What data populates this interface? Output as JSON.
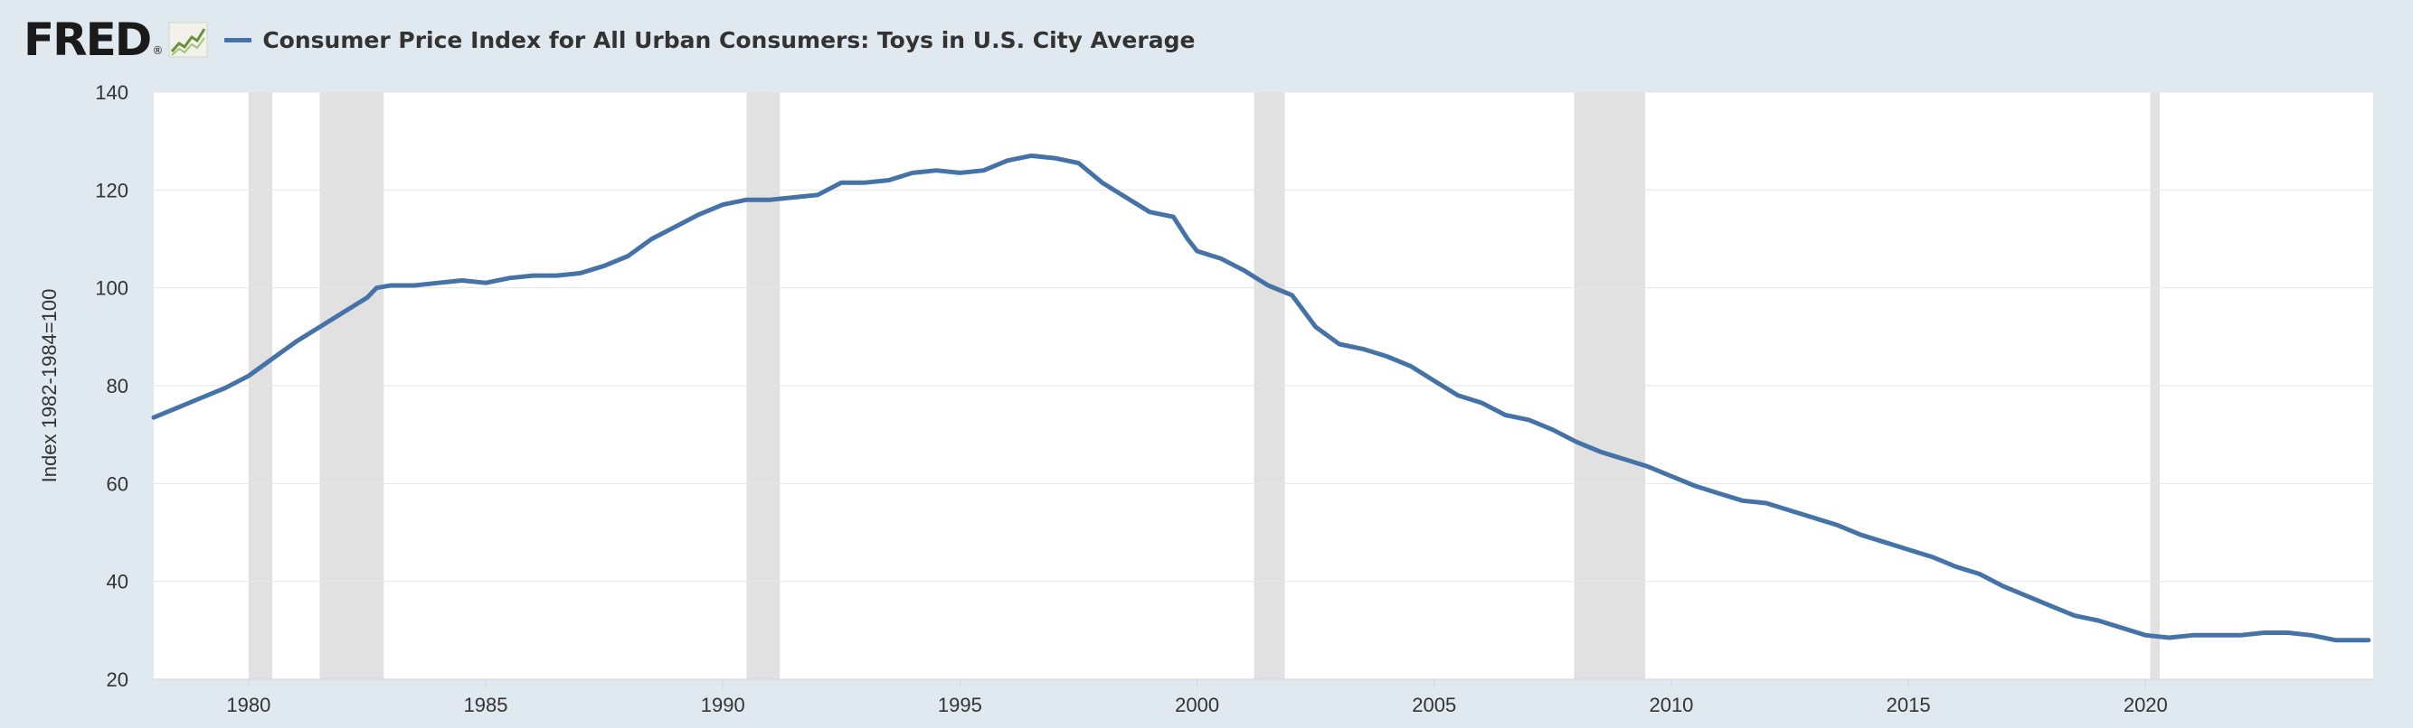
{
  "header": {
    "logo_text": "FRED",
    "logo_mark": "®",
    "logo_icon": "chart-line-icon",
    "series_title": "Consumer Price Index for All Urban Consumers: Toys in U.S. City Average"
  },
  "colors": {
    "series": "#4572a7",
    "background": "#e1e9f0",
    "plot": "#ffffff",
    "recession": "#e1e1e1",
    "grid": "#e6e6e6",
    "text": "#333333"
  },
  "chart_data": {
    "type": "line",
    "title": "Consumer Price Index for All Urban Consumers: Toys in U.S. City Average",
    "ylabel": "Index 1982-1984=100",
    "xlabel": "",
    "xlim": [
      1978,
      2024.8
    ],
    "ylim": [
      20,
      140
    ],
    "x_ticks": [
      "1980",
      "1985",
      "1990",
      "1995",
      "2000",
      "2005",
      "2010",
      "2015",
      "2020"
    ],
    "y_ticks": [
      "20",
      "40",
      "60",
      "80",
      "100",
      "120",
      "140"
    ],
    "grid": "horizontal",
    "recessions": [
      [
        1980.0,
        1980.5
      ],
      [
        1981.5,
        1982.85
      ],
      [
        1990.5,
        1991.2
      ],
      [
        2001.2,
        2001.85
      ],
      [
        2007.95,
        2009.45
      ],
      [
        2020.1,
        2020.3
      ]
    ],
    "series": [
      {
        "name": "Consumer Price Index for All Urban Consumers: Toys in U.S. City Average",
        "x": [
          1978.0,
          1978.5,
          1979.0,
          1979.5,
          1980.0,
          1980.5,
          1981.0,
          1981.5,
          1982.0,
          1982.5,
          1982.7,
          1983.0,
          1983.5,
          1984.0,
          1984.5,
          1985.0,
          1985.5,
          1986.0,
          1986.5,
          1987.0,
          1987.5,
          1988.0,
          1988.5,
          1989.0,
          1989.5,
          1990.0,
          1990.5,
          1991.0,
          1991.5,
          1992.0,
          1992.5,
          1993.0,
          1993.5,
          1994.0,
          1994.5,
          1995.0,
          1995.5,
          1996.0,
          1996.5,
          1997.0,
          1997.5,
          1998.0,
          1998.5,
          1999.0,
          1999.5,
          1999.8,
          2000.0,
          2000.5,
          2001.0,
          2001.5,
          2002.0,
          2002.5,
          2003.0,
          2003.5,
          2004.0,
          2004.5,
          2005.0,
          2005.5,
          2006.0,
          2006.5,
          2007.0,
          2007.5,
          2008.0,
          2008.5,
          2009.0,
          2009.5,
          2010.0,
          2010.5,
          2011.0,
          2011.5,
          2012.0,
          2012.5,
          2013.0,
          2013.5,
          2014.0,
          2014.5,
          2015.0,
          2015.5,
          2016.0,
          2016.5,
          2017.0,
          2017.5,
          2018.0,
          2018.5,
          2019.0,
          2019.5,
          2020.0,
          2020.5,
          2021.0,
          2021.5,
          2022.0,
          2022.5,
          2023.0,
          2023.5,
          2024.0,
          2024.7
        ],
        "y": [
          73.5,
          75.5,
          77.5,
          79.5,
          82,
          85.5,
          89,
          92,
          95,
          98,
          100,
          100.5,
          100.5,
          101,
          101.5,
          101,
          102,
          102.5,
          102.5,
          103,
          104.5,
          106.5,
          110,
          112.5,
          115,
          117,
          118,
          118,
          118.5,
          119,
          121.5,
          121.5,
          122,
          123.5,
          124,
          123.5,
          124,
          126,
          127,
          126.5,
          125.5,
          121.5,
          118.5,
          115.5,
          114.5,
          110,
          107.5,
          106,
          103.5,
          100.5,
          98.5,
          92,
          88.5,
          87.5,
          86,
          84,
          81,
          78,
          76.5,
          74,
          73,
          71,
          68.5,
          66.5,
          65,
          63.5,
          61.5,
          59.5,
          58,
          56.5,
          56,
          54.5,
          53,
          51.5,
          49.5,
          48,
          46.5,
          45,
          43,
          41.5,
          39,
          37,
          35,
          33,
          32,
          30.5,
          29,
          28.5,
          29,
          29,
          29,
          29.5,
          29.5,
          29,
          28,
          28
        ]
      }
    ]
  }
}
